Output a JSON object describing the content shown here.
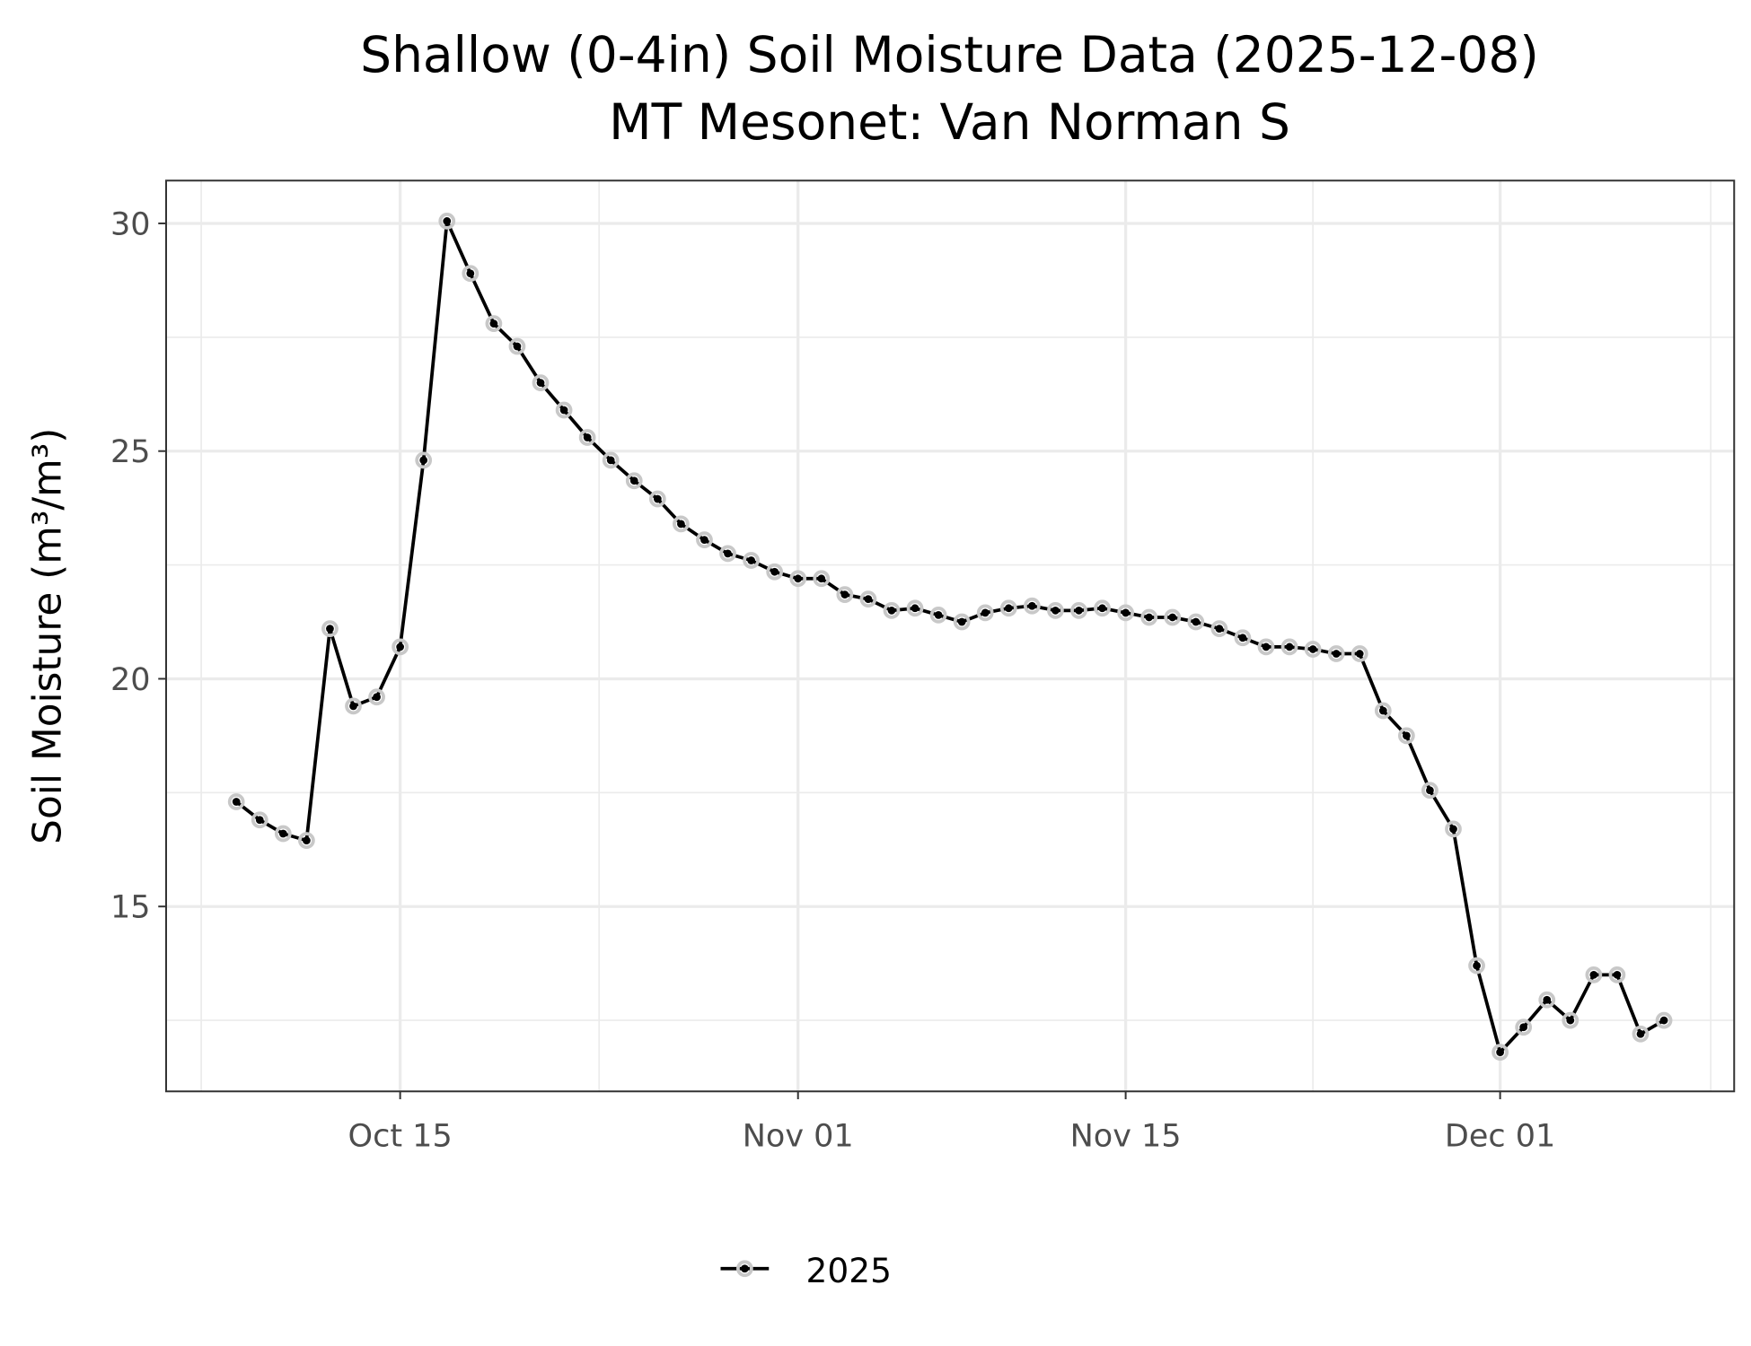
{
  "chart_data": {
    "type": "line",
    "title": "Shallow (0-4in) Soil Moisture Data (2025-12-08)",
    "subtitle": "MT Mesonet: Van Norman S",
    "xlabel": "",
    "ylabel": "Soil Moisture (m³/m³)",
    "xlim": [
      "2025-10-05",
      "2025-12-11"
    ],
    "ylim": [
      10.94,
      30.94
    ],
    "grid": true,
    "legend_position": "bottom",
    "x_ticks": [
      {
        "date": "2025-10-15",
        "label": "Oct 15"
      },
      {
        "date": "2025-11-01",
        "label": "Nov 01"
      },
      {
        "date": "2025-11-15",
        "label": "Nov 15"
      },
      {
        "date": "2025-12-01",
        "label": "Dec 01"
      }
    ],
    "y_ticks": [
      {
        "value": 15,
        "label": "15"
      },
      {
        "value": 20,
        "label": "20"
      },
      {
        "value": 25,
        "label": "25"
      },
      {
        "value": 30,
        "label": "30"
      }
    ],
    "start_date": "2025-10-08",
    "series": [
      {
        "name": "2025",
        "color": "#000000",
        "values": [
          17.3,
          16.9,
          16.6,
          16.45,
          21.1,
          19.4,
          19.6,
          20.7,
          24.8,
          30.05,
          28.9,
          27.8,
          27.3,
          26.5,
          25.9,
          25.3,
          24.8,
          24.35,
          23.95,
          23.4,
          23.05,
          22.75,
          22.6,
          22.35,
          22.2,
          22.2,
          21.85,
          21.75,
          21.5,
          21.55,
          21.4,
          21.25,
          21.45,
          21.55,
          21.6,
          21.5,
          21.5,
          21.55,
          21.45,
          21.35,
          21.35,
          21.25,
          21.1,
          20.9,
          20.7,
          20.7,
          20.65,
          20.55,
          20.55,
          19.3,
          18.75,
          17.55,
          16.7,
          13.7,
          11.8,
          12.35,
          12.95,
          12.5,
          13.5,
          13.5,
          12.2,
          12.5
        ]
      }
    ]
  }
}
